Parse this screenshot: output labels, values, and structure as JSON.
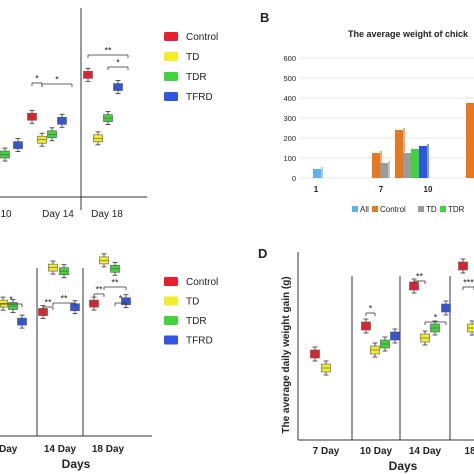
{
  "colors": {
    "control": "#e8202b",
    "td": "#f2ec2a",
    "tdr": "#3ed43a",
    "tfrd": "#2f56e0",
    "all": "#5ab4ec",
    "bar_control": "#e8781f",
    "bar_td": "#9b9b9b"
  },
  "chart_data": [
    {
      "panel": "A",
      "type": "scatter",
      "legend": [
        "Control",
        "TD",
        "TDR",
        "TFRD"
      ],
      "categories": [
        "10",
        "Day 14",
        "Day 18"
      ],
      "series": [
        {
          "name": "Control",
          "points": [
            {
              "cat": "Day 14",
              "value": 95
            },
            {
              "cat": "Day 18",
              "value": 126
            }
          ]
        },
        {
          "name": "TD",
          "points": [
            {
              "cat": "Day 14",
              "value": 78
            },
            {
              "cat": "Day 18",
              "value": 79
            }
          ]
        },
        {
          "name": "TDR",
          "points": [
            {
              "cat": "10",
              "value": 67
            },
            {
              "cat": "Day 14",
              "value": 82
            },
            {
              "cat": "Day 18",
              "value": 94
            }
          ]
        },
        {
          "name": "TFRD",
          "points": [
            {
              "cat": "10",
              "value": 74
            },
            {
              "cat": "Day 14",
              "value": 92
            },
            {
              "cat": "Day 18",
              "value": 117
            }
          ]
        }
      ],
      "annotations": [
        "*",
        "*",
        "**",
        "*"
      ]
    },
    {
      "panel": "B",
      "type": "bar",
      "label": "B",
      "title": "The average weight of chick",
      "ylim": [
        0,
        600
      ],
      "yticks": [
        0,
        100,
        200,
        300,
        400,
        500,
        600
      ],
      "categories": [
        "1",
        "7",
        "10"
      ],
      "legend": [
        "All",
        "Control",
        "TD",
        "TDR"
      ],
      "series": [
        {
          "name": "All",
          "values": [
            45,
            null,
            null
          ]
        },
        {
          "name": "Control",
          "values": [
            null,
            125,
            240
          ]
        },
        {
          "name": "TD",
          "values": [
            null,
            75,
            125
          ]
        },
        {
          "name": "TDR",
          "values": [
            null,
            null,
            145
          ]
        },
        {
          "name": "TFRD",
          "values": [
            null,
            null,
            160
          ]
        }
      ],
      "extra_bar": {
        "series": "Control",
        "value": 375
      }
    },
    {
      "panel": "C",
      "type": "scatter",
      "legend": [
        "Control",
        "TD",
        "TDR",
        "TFRD"
      ],
      "categories": [
        "0 Day",
        "14 Day",
        "18 Day"
      ],
      "xlabel": "Days",
      "series": [
        {
          "name": "Control",
          "points": [
            {
              "cat": "14 Day",
              "value": 40
            },
            {
              "cat": "18 Day",
              "value": 47
            }
          ]
        },
        {
          "name": "TD",
          "points": [
            {
              "cat": "0 Day",
              "value": 47
            },
            {
              "cat": "14 Day",
              "value": 77
            },
            {
              "cat": "18 Day",
              "value": 83
            }
          ]
        },
        {
          "name": "TDR",
          "points": [
            {
              "cat": "0 Day",
              "value": 45
            },
            {
              "cat": "14 Day",
              "value": 74
            },
            {
              "cat": "18 Day",
              "value": 76
            }
          ]
        },
        {
          "name": "TFRD",
          "points": [
            {
              "cat": "0 Day",
              "value": 32
            },
            {
              "cat": "14 Day",
              "value": 44
            },
            {
              "cat": "18 Day",
              "value": 49
            }
          ]
        }
      ],
      "annotations": [
        "*",
        "**",
        "**",
        "**",
        "**",
        "*"
      ]
    },
    {
      "panel": "D",
      "type": "scatter",
      "label": "D",
      "ylabel": "The average daily weight gain (g)",
      "xlabel": "Days",
      "categories": [
        "7 Day",
        "10 Day",
        "14 Day",
        "18"
      ],
      "series": [
        {
          "name": "Control",
          "points": [
            {
              "cat": "7 Day",
              "value": 24
            },
            {
              "cat": "10 Day",
              "value": 38
            },
            {
              "cat": "14 Day",
              "value": 58
            },
            {
              "cat": "18",
              "value": 68
            }
          ]
        },
        {
          "name": "TD",
          "points": [
            {
              "cat": "7 Day",
              "value": 17
            },
            {
              "cat": "10 Day",
              "value": 26
            },
            {
              "cat": "14 Day",
              "value": 32
            },
            {
              "cat": "18",
              "value": 37
            }
          ]
        },
        {
          "name": "TDR",
          "points": [
            {
              "cat": "10 Day",
              "value": 29
            },
            {
              "cat": "14 Day",
              "value": 37
            }
          ]
        },
        {
          "name": "TFRD",
          "points": [
            {
              "cat": "10 Day",
              "value": 33
            },
            {
              "cat": "14 Day",
              "value": 47
            }
          ]
        }
      ],
      "annotations": [
        "*",
        "**",
        "*",
        "***"
      ]
    }
  ]
}
